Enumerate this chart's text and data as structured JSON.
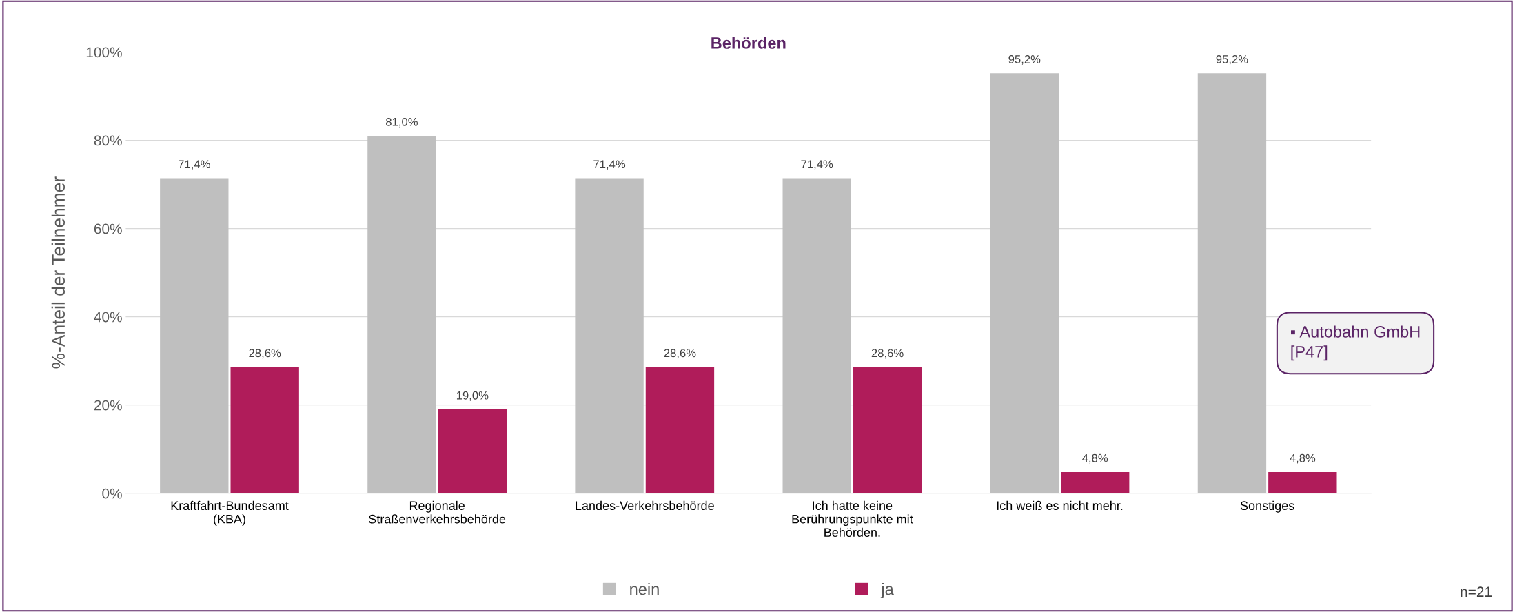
{
  "chart_data": {
    "type": "bar",
    "title": "Behörden",
    "ylabel": "%-Anteil der Teilnehmer",
    "categories": [
      "Kraftfahrt-Bundesamt\n(KBA)",
      "Regionale\nStraßenverkehrsbehörde",
      "Landes-Verkehrsbehörde",
      "Ich hatte keine\nBerührungspunkte mit\nBehörden.",
      "Ich weiß es nicht mehr.",
      "Sonstiges"
    ],
    "series": [
      {
        "name": "nein",
        "color": "#bfbfbf",
        "values": [
          71.4,
          81.0,
          71.4,
          71.4,
          95.2,
          95.2
        ],
        "value_labels": [
          "71,4%",
          "81,0%",
          "71,4%",
          "71,4%",
          "95,2%",
          "95,2%"
        ]
      },
      {
        "name": "ja",
        "color": "#b01c5a",
        "values": [
          28.6,
          19.0,
          28.6,
          28.6,
          4.8,
          4.8
        ],
        "value_labels": [
          "28,6%",
          "19,0%",
          "28,6%",
          "28,6%",
          "4,8%",
          "4,8%"
        ]
      }
    ],
    "ylim": [
      0,
      100
    ],
    "yticks": [
      {
        "value": 0,
        "label": "0%"
      },
      {
        "value": 20,
        "label": "20%"
      },
      {
        "value": 40,
        "label": "40%"
      },
      {
        "value": 60,
        "label": "60%"
      },
      {
        "value": 80,
        "label": "80%"
      },
      {
        "value": 100,
        "label": "100%"
      }
    ],
    "grid": "y",
    "legend": "bottom",
    "annotations": [
      "▪ Autobahn GmbH\n[P47]",
      "n=21"
    ]
  }
}
